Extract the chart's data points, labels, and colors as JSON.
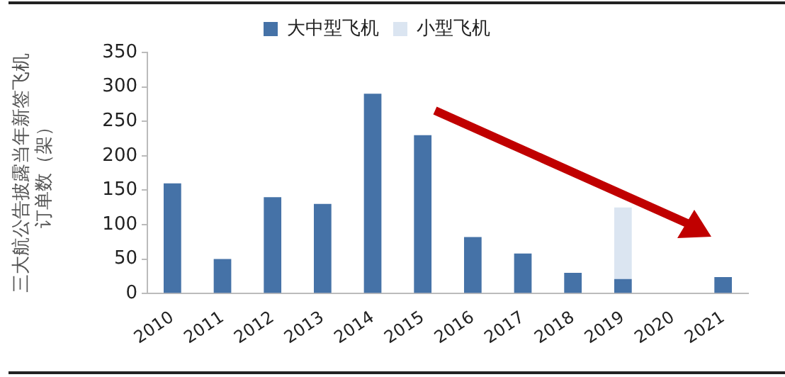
{
  "chart_data": {
    "type": "bar",
    "stacked": true,
    "ylabel": "三大航公告披露当年新签飞机订单数（架）",
    "categories": [
      "2010",
      "2011",
      "2012",
      "2013",
      "2014",
      "2015",
      "2016",
      "2017",
      "2018",
      "2019",
      "2020",
      "2021"
    ],
    "series": [
      {
        "name": "大中型飞机",
        "color": "#4572a7",
        "values": [
          160,
          50,
          140,
          130,
          290,
          230,
          82,
          58,
          30,
          21,
          0,
          24
        ]
      },
      {
        "name": "小型飞机",
        "color": "#dbe5f1",
        "values": [
          null,
          null,
          null,
          null,
          null,
          null,
          null,
          null,
          null,
          104,
          null,
          null
        ]
      }
    ],
    "ylim": [
      0,
      350
    ],
    "yticks": [
      0,
      50,
      100,
      150,
      200,
      250,
      300,
      350
    ],
    "grid": false,
    "legend": "top"
  }
}
